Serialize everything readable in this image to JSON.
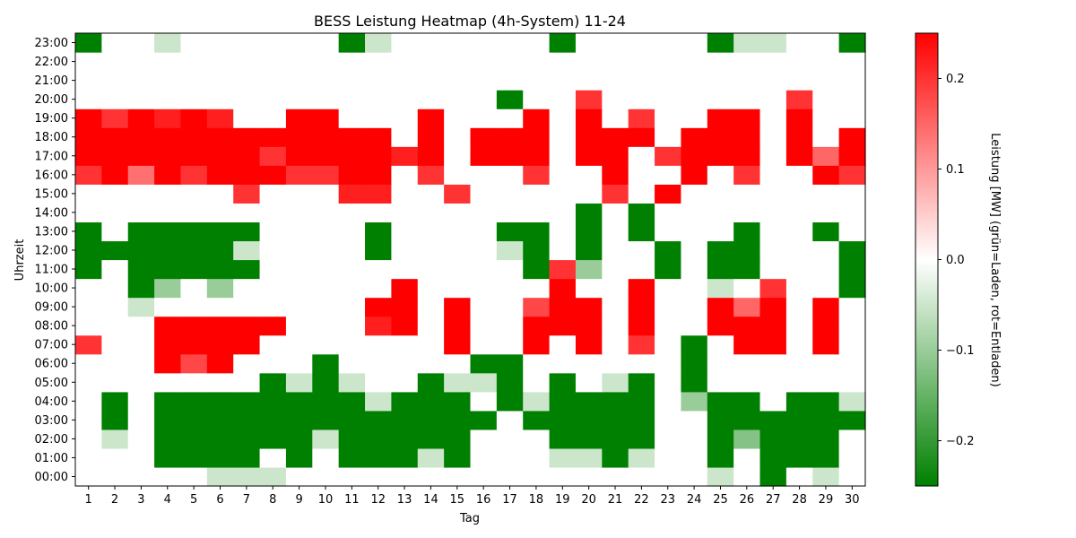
{
  "chart_data": {
    "type": "heatmap",
    "title": "BESS Leistung Heatmap (4h-System) 11-24",
    "xlabel": "Tag",
    "ylabel": "Uhrzeit",
    "colorbar_label": "Leistung [MW] (grün=Laden, rot=Entladen)",
    "x": [
      1,
      2,
      3,
      4,
      5,
      6,
      7,
      8,
      9,
      10,
      11,
      12,
      13,
      14,
      15,
      16,
      17,
      18,
      19,
      20,
      21,
      22,
      23,
      24,
      25,
      26,
      27,
      28,
      29,
      30
    ],
    "y": [
      "00:00",
      "01:00",
      "02:00",
      "03:00",
      "04:00",
      "05:00",
      "06:00",
      "07:00",
      "08:00",
      "09:00",
      "10:00",
      "11:00",
      "12:00",
      "13:00",
      "14:00",
      "15:00",
      "16:00",
      "17:00",
      "18:00",
      "19:00",
      "20:00",
      "21:00",
      "22:00",
      "23:00"
    ],
    "z": [
      [
        0,
        0,
        0,
        0,
        0,
        -0.05,
        -0.05,
        -0.05,
        0,
        0,
        0,
        0,
        0,
        0,
        0,
        0,
        0,
        0,
        0,
        0,
        0,
        0,
        0,
        0,
        -0.05,
        0,
        -0.25,
        0,
        -0.05,
        0
      ],
      [
        0,
        0,
        0,
        -0.25,
        -0.25,
        -0.25,
        -0.25,
        0,
        -0.25,
        0,
        -0.25,
        -0.25,
        -0.25,
        -0.05,
        -0.25,
        0,
        0,
        0,
        -0.05,
        -0.05,
        -0.25,
        -0.05,
        0,
        0,
        -0.25,
        0,
        -0.25,
        -0.25,
        -0.25,
        0
      ],
      [
        0,
        -0.05,
        0,
        -0.25,
        -0.25,
        -0.25,
        -0.25,
        -0.25,
        -0.25,
        -0.05,
        -0.25,
        -0.25,
        -0.25,
        -0.25,
        -0.25,
        0,
        0,
        0,
        -0.25,
        -0.25,
        -0.25,
        -0.25,
        0,
        0,
        -0.25,
        -0.12,
        -0.25,
        -0.25,
        -0.25,
        0
      ],
      [
        0,
        -0.25,
        0,
        -0.25,
        -0.25,
        -0.25,
        -0.25,
        -0.25,
        -0.25,
        -0.25,
        -0.25,
        -0.25,
        -0.25,
        -0.25,
        -0.25,
        -0.25,
        0,
        -0.25,
        -0.25,
        -0.25,
        -0.25,
        -0.25,
        0,
        0,
        -0.25,
        -0.25,
        -0.25,
        -0.25,
        -0.25,
        -0.25
      ],
      [
        0,
        -0.25,
        0,
        -0.25,
        -0.25,
        -0.25,
        -0.25,
        -0.25,
        -0.25,
        -0.25,
        -0.25,
        -0.05,
        -0.25,
        -0.25,
        -0.25,
        0,
        -0.25,
        -0.05,
        -0.25,
        -0.25,
        -0.25,
        -0.25,
        0,
        -0.1,
        -0.25,
        -0.25,
        0,
        -0.25,
        -0.25,
        -0.05
      ],
      [
        0,
        0,
        0,
        0,
        0,
        0,
        0,
        -0.25,
        -0.05,
        -0.25,
        -0.05,
        0,
        0,
        -0.25,
        -0.05,
        -0.05,
        -0.25,
        0,
        -0.25,
        0,
        -0.05,
        -0.25,
        0,
        -0.25,
        0,
        0,
        0,
        0,
        0,
        0
      ],
      [
        0,
        0,
        0,
        0.25,
        0.18,
        0.25,
        0,
        0,
        0,
        -0.25,
        0,
        0,
        0,
        0,
        0,
        -0.25,
        -0.25,
        0,
        0,
        0,
        0,
        0,
        0,
        -0.25,
        0,
        0,
        0,
        0,
        0,
        0
      ],
      [
        0.2,
        0,
        0,
        0.25,
        0.25,
        0.25,
        0.25,
        0,
        0,
        0,
        0,
        0,
        0,
        0,
        0.25,
        0,
        0,
        0.25,
        0,
        0.25,
        0,
        0.2,
        0,
        -0.25,
        0,
        0.25,
        0.25,
        0,
        0.25,
        0
      ],
      [
        0,
        0,
        0,
        0.25,
        0.25,
        0.25,
        0.25,
        0.25,
        0,
        0,
        0,
        0.22,
        0.25,
        0,
        0.25,
        0,
        0,
        0.25,
        0.25,
        0.25,
        0,
        0.25,
        0,
        0,
        0.25,
        0.25,
        0.25,
        0,
        0.25,
        0
      ],
      [
        0,
        0,
        -0.05,
        0,
        0,
        0,
        0,
        0,
        0,
        0,
        0,
        0.25,
        0.25,
        0,
        0.25,
        0,
        0,
        0.18,
        0.25,
        0.25,
        0,
        0.25,
        0,
        0,
        0.25,
        0.15,
        0.25,
        0,
        0.25,
        0
      ],
      [
        0,
        0,
        -0.25,
        -0.1,
        0,
        -0.1,
        0,
        0,
        0,
        0,
        0,
        0,
        0.25,
        0,
        0,
        0,
        0,
        0,
        0.25,
        0,
        0,
        0.25,
        0,
        0,
        -0.05,
        0,
        0.2,
        0,
        0,
        -0.25
      ],
      [
        -0.25,
        0,
        -0.25,
        -0.25,
        -0.25,
        -0.25,
        -0.25,
        0,
        0,
        0,
        0,
        0,
        0,
        0,
        0,
        0,
        0,
        -0.25,
        0.2,
        -0.1,
        0,
        0,
        -0.25,
        0,
        -0.25,
        -0.25,
        0,
        0,
        0,
        -0.25
      ],
      [
        -0.25,
        -0.25,
        -0.25,
        -0.25,
        -0.25,
        -0.25,
        -0.05,
        0,
        0,
        0,
        0,
        -0.25,
        0,
        0,
        0,
        0,
        -0.05,
        -0.25,
        0,
        -0.25,
        0,
        0,
        -0.25,
        0,
        -0.25,
        -0.25,
        0,
        0,
        0,
        -0.25
      ],
      [
        -0.25,
        0,
        -0.25,
        -0.25,
        -0.25,
        -0.25,
        -0.25,
        0,
        0,
        0,
        0,
        -0.25,
        0,
        0,
        0,
        0,
        -0.25,
        -0.25,
        0,
        -0.25,
        0,
        -0.25,
        0,
        0,
        0,
        -0.25,
        0,
        0,
        -0.25,
        0
      ],
      [
        0,
        0,
        0,
        0,
        0,
        0,
        0,
        0,
        0,
        0,
        0,
        0,
        0,
        0,
        0,
        0,
        0,
        0,
        0,
        -0.25,
        0,
        -0.25,
        0,
        0,
        0,
        0,
        0,
        0,
        0,
        0
      ],
      [
        0,
        0,
        0,
        0,
        0,
        0,
        0.2,
        0,
        0,
        0,
        0.22,
        0.22,
        0,
        0,
        0.2,
        0,
        0,
        0,
        0,
        0,
        0.2,
        0,
        0.25,
        0,
        0,
        0,
        0,
        0,
        0,
        0
      ],
      [
        0.2,
        0.25,
        0.14,
        0.25,
        0.2,
        0.25,
        0.25,
        0.25,
        0.2,
        0.2,
        0.25,
        0.25,
        0,
        0.2,
        0,
        0,
        0,
        0.2,
        0,
        0,
        0.25,
        0,
        0,
        0.25,
        0,
        0.2,
        0,
        0,
        0.25,
        0.2
      ],
      [
        0.25,
        0.25,
        0.25,
        0.25,
        0.25,
        0.25,
        0.25,
        0.2,
        0.25,
        0.25,
        0.25,
        0.25,
        0.22,
        0.25,
        0,
        0.25,
        0.25,
        0.25,
        0,
        0.25,
        0.25,
        0,
        0.2,
        0.25,
        0.25,
        0.25,
        0,
        0.25,
        0.15,
        0.25
      ],
      [
        0.25,
        0.25,
        0.25,
        0.25,
        0.25,
        0.25,
        0.25,
        0.25,
        0.25,
        0.25,
        0.25,
        0.25,
        0,
        0.25,
        0,
        0.25,
        0.25,
        0.25,
        0,
        0.25,
        0.25,
        0.25,
        0,
        0.25,
        0.25,
        0.25,
        0,
        0.25,
        0,
        0.25
      ],
      [
        0.25,
        0.2,
        0.25,
        0.22,
        0.25,
        0.22,
        0,
        0,
        0.25,
        0.25,
        0,
        0,
        0,
        0.25,
        0,
        0,
        0,
        0.25,
        0,
        0.25,
        0,
        0.2,
        0,
        0,
        0.25,
        0.25,
        0,
        0.25,
        0,
        0
      ],
      [
        0,
        0,
        0,
        0,
        0,
        0,
        0,
        0,
        0,
        0,
        0,
        0,
        0,
        0,
        0,
        0,
        -0.25,
        0,
        0,
        0.2,
        0,
        0,
        0,
        0,
        0,
        0,
        0,
        0.2,
        0,
        0
      ],
      [
        0,
        0,
        0,
        0,
        0,
        0,
        0,
        0,
        0,
        0,
        0,
        0,
        0,
        0,
        0,
        0,
        0,
        0,
        0,
        0,
        0,
        0,
        0,
        0,
        0,
        0,
        0,
        0,
        0,
        0
      ],
      [
        0,
        0,
        0,
        0,
        0,
        0,
        0,
        0,
        0,
        0,
        0,
        0,
        0,
        0,
        0,
        0,
        0,
        0,
        0,
        0,
        0,
        0,
        0,
        0,
        0,
        0,
        0,
        0,
        0,
        0
      ],
      [
        -0.25,
        0,
        0,
        -0.05,
        0,
        0,
        0,
        0,
        0,
        0,
        -0.25,
        -0.05,
        0,
        0,
        0,
        0,
        0,
        0,
        -0.25,
        0,
        0,
        0,
        0,
        0,
        -0.25,
        -0.05,
        -0.05,
        0,
        0,
        -0.25
      ]
    ],
    "zlim": [
      -0.25,
      0.25
    ],
    "colorbar_ticks": [
      -0.2,
      -0.1,
      0.0,
      0.1,
      0.2
    ],
    "colorbar_tick_labels": [
      "−0.2",
      "−0.1",
      "0.0",
      "0.1",
      "0.2"
    ],
    "colors": {
      "charge": "#008000",
      "zero": "#ffffff",
      "discharge": "#ff0000"
    },
    "grid": false,
    "legend": "colorbar-right"
  }
}
